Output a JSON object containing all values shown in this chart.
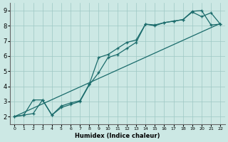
{
  "title": "",
  "xlabel": "Humidex (Indice chaleur)",
  "ylabel": "",
  "xlim": [
    -0.5,
    22.5
  ],
  "ylim": [
    1.5,
    9.5
  ],
  "xticks": [
    0,
    1,
    2,
    3,
    4,
    5,
    6,
    7,
    8,
    9,
    10,
    11,
    12,
    13,
    14,
    15,
    16,
    17,
    18,
    19,
    20,
    21,
    22
  ],
  "yticks": [
    2,
    3,
    4,
    5,
    6,
    7,
    8,
    9
  ],
  "bg_color": "#cce8e4",
  "line_color": "#1a6b6b",
  "line1_x": [
    0,
    22
  ],
  "line1_y": [
    2.0,
    8.15
  ],
  "line2_x": [
    0,
    1,
    2,
    3,
    4,
    5,
    6,
    7,
    8,
    9,
    10,
    11,
    12,
    13,
    14,
    15,
    16,
    17,
    18,
    19,
    20,
    21,
    22
  ],
  "line2_y": [
    2.0,
    2.1,
    3.1,
    3.1,
    2.1,
    2.6,
    2.8,
    3.0,
    4.1,
    4.9,
    5.9,
    6.1,
    6.5,
    6.9,
    8.1,
    8.0,
    8.2,
    8.3,
    8.4,
    8.9,
    8.6,
    8.85,
    8.1
  ],
  "line3_x": [
    0,
    1,
    2,
    3,
    4,
    5,
    6,
    7,
    8,
    9,
    10,
    11,
    12,
    13,
    14,
    15,
    16,
    17,
    18,
    19,
    20,
    21,
    22
  ],
  "line3_y": [
    2.0,
    2.1,
    2.2,
    3.1,
    2.1,
    2.7,
    2.9,
    3.05,
    4.15,
    5.9,
    6.1,
    6.5,
    6.9,
    7.05,
    8.1,
    8.05,
    8.2,
    8.3,
    8.4,
    8.95,
    9.0,
    8.05,
    8.1
  ]
}
